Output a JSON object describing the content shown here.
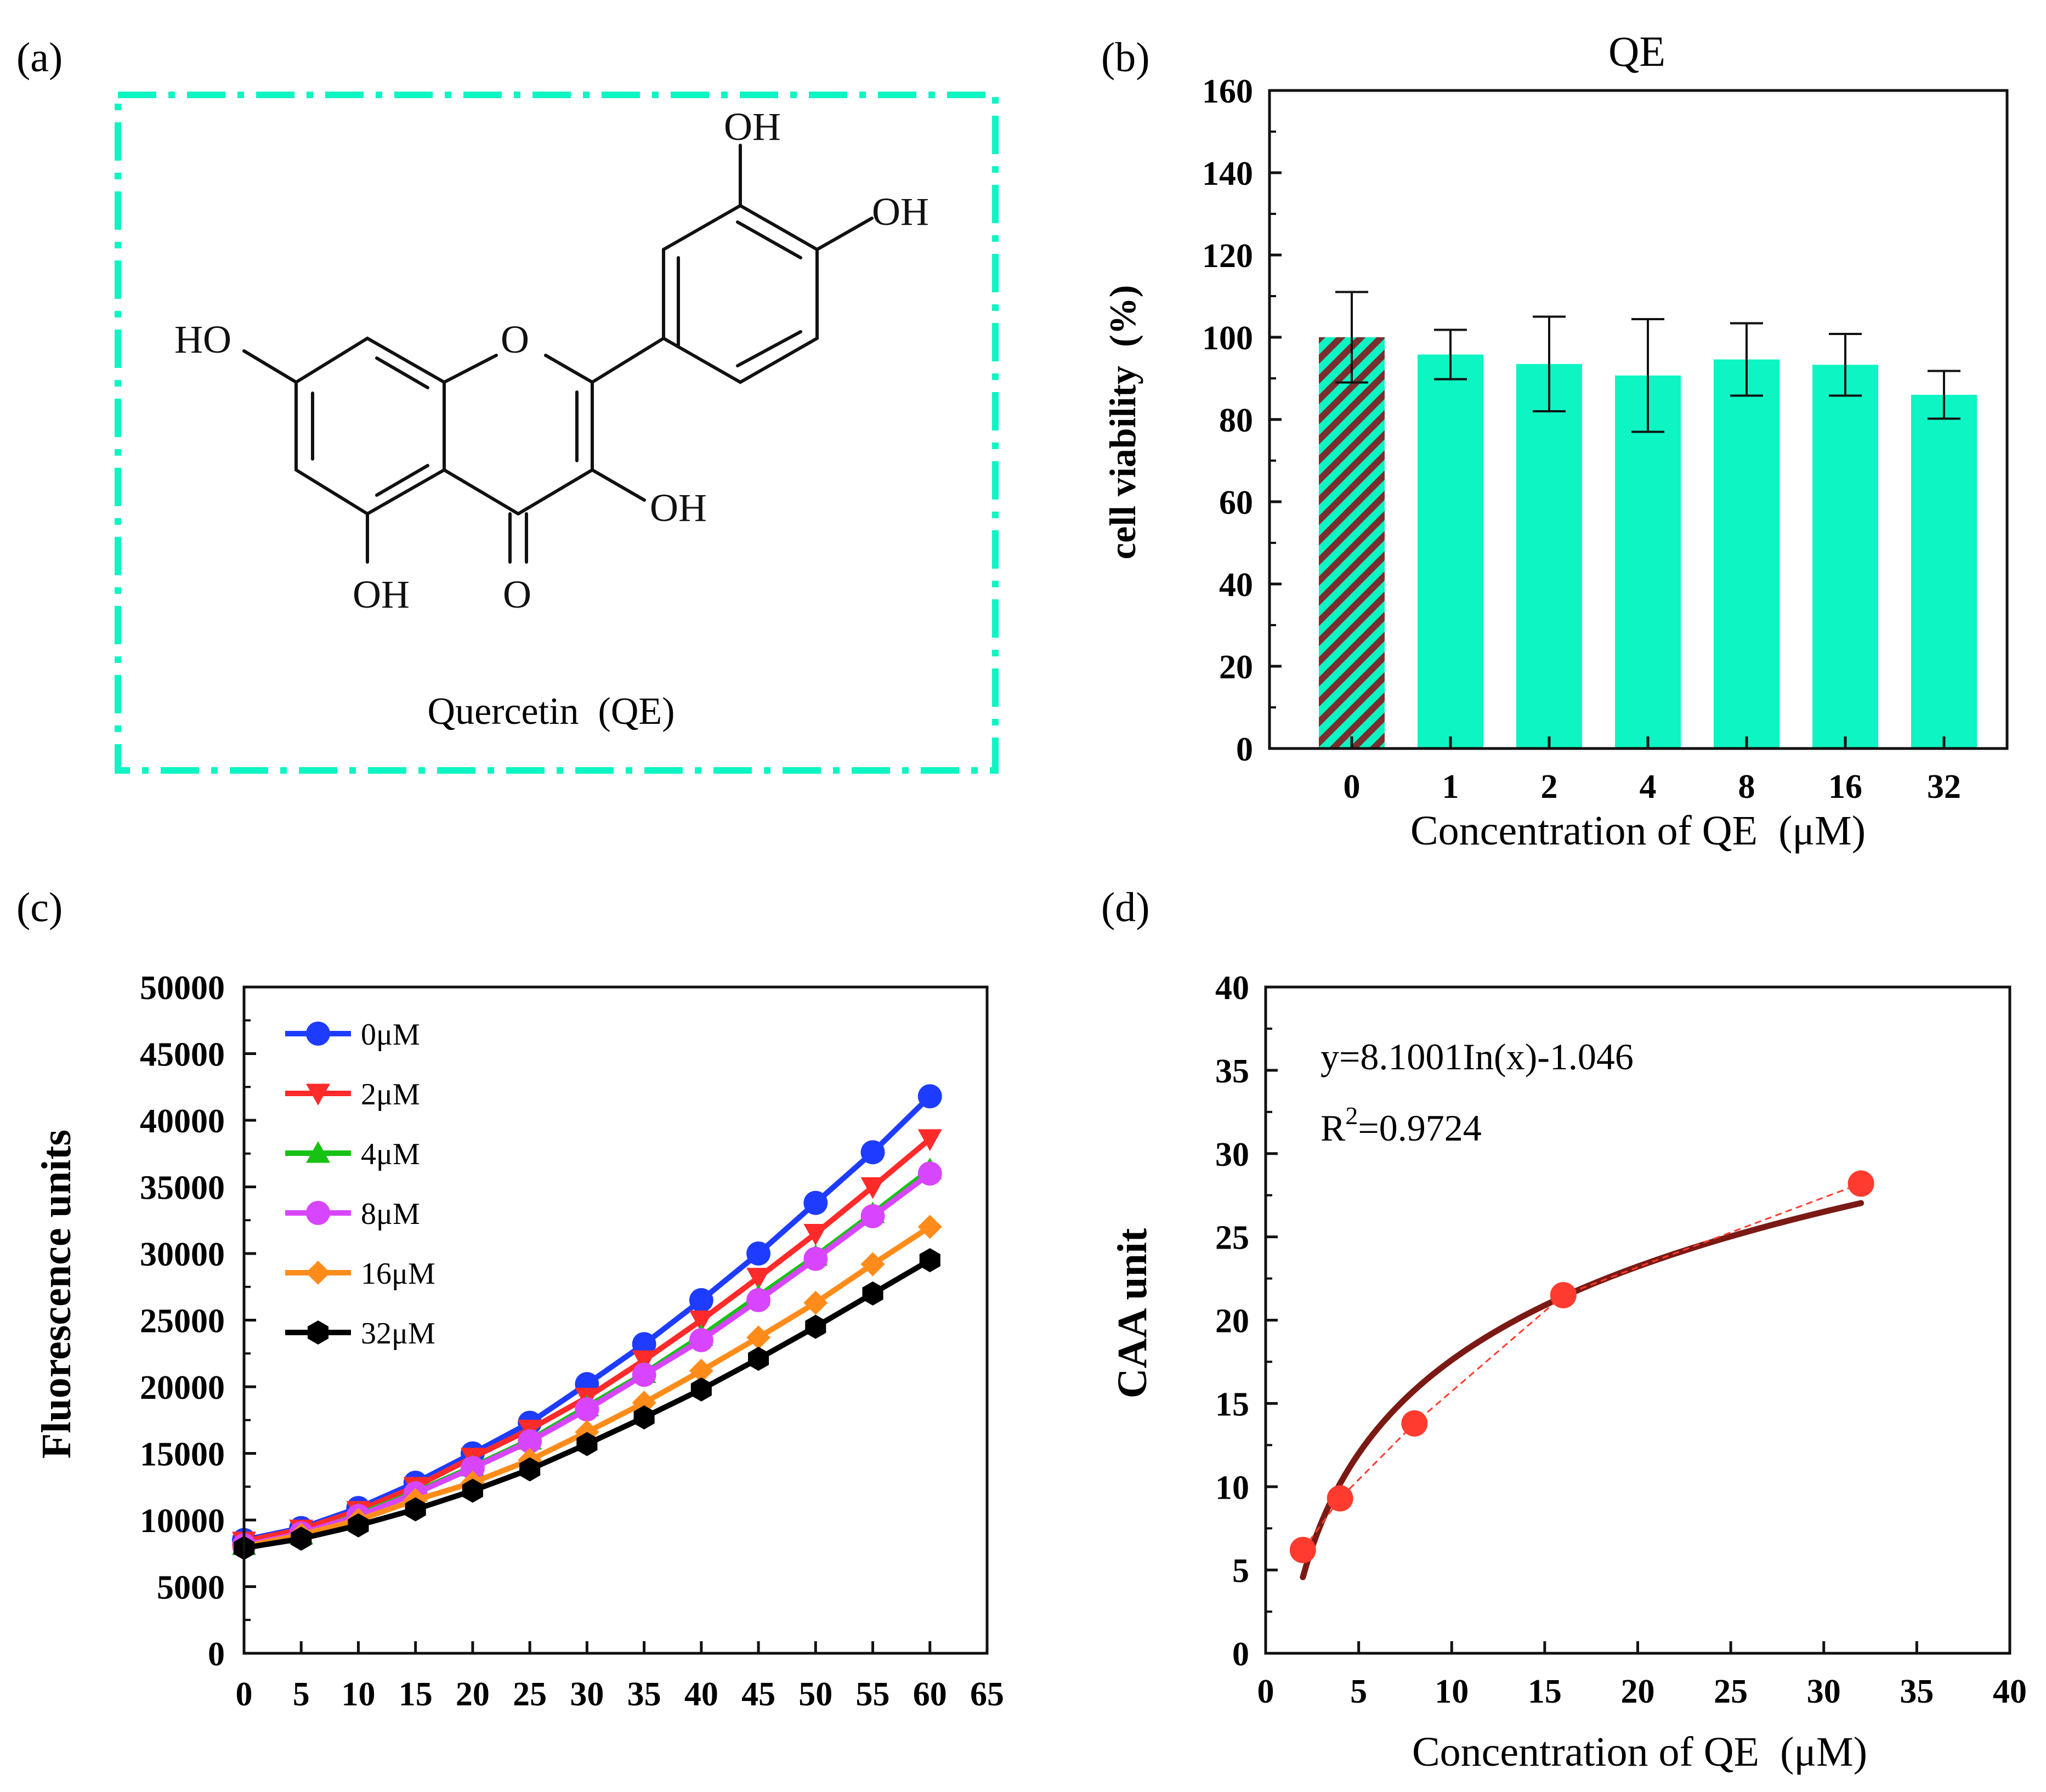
{
  "colors": {
    "teal": "#0DF5C3",
    "hatch": "#7A2E2E",
    "frame": "#111111",
    "fit": "#7B1A14",
    "points": "#FF3B2F"
  },
  "panels": {
    "a": {
      "label": "(a)"
    },
    "b": {
      "label": "(b)"
    },
    "c": {
      "label": "(c)"
    },
    "d": {
      "label": "(d)"
    }
  },
  "structure": {
    "caption": "Quercetin  (QE)",
    "labels": {
      "oh_top": "OH",
      "oh_right": "OH",
      "ho_left": "HO",
      "ring_o": "O",
      "oh_c3": "OH",
      "oh_c5": "OH",
      "carbonyl_o": "O"
    }
  },
  "chart_data": [
    {
      "id": "b",
      "type": "bar",
      "title": "QE",
      "xlabel": "Concentration of QE  (μM)",
      "ylabel": "cell viability  (%)",
      "categories": [
        "0",
        "1",
        "2",
        "4",
        "8",
        "16",
        "32"
      ],
      "values": [
        100,
        95.8,
        93.5,
        90.7,
        94.6,
        93.3,
        86
      ],
      "errors": [
        11,
        6,
        11.5,
        13.7,
        8.8,
        7.5,
        5.8
      ],
      "ylim": [
        0,
        160
      ],
      "yticks": [
        "0",
        "20",
        "40",
        "60",
        "80",
        "100",
        "120",
        "140",
        "160"
      ],
      "hatched_first": true
    },
    {
      "id": "c",
      "type": "line",
      "xlabel": "",
      "ylabel": "Fluorescence units",
      "x": [
        0,
        5,
        10,
        15,
        20,
        25,
        30,
        35,
        40,
        45,
        50,
        55,
        60
      ],
      "xlim": [
        0,
        65
      ],
      "ylim": [
        0,
        50000
      ],
      "xticks": [
        "0",
        "5",
        "10",
        "15",
        "20",
        "25",
        "30",
        "35",
        "40",
        "45",
        "50",
        "55",
        "60",
        "65"
      ],
      "yticks": [
        "0",
        "5000",
        "10000",
        "15000",
        "20000",
        "25000",
        "30000",
        "35000",
        "40000",
        "45000",
        "50000"
      ],
      "legend_position": "top-left",
      "series": [
        {
          "name": "0μM",
          "color": "#1E3CFF",
          "marker": "circle",
          "values": [
            8500,
            9400,
            10900,
            12800,
            15000,
            17300,
            20200,
            23200,
            26500,
            30000,
            33800,
            37600,
            41800
          ]
        },
        {
          "name": "2μM",
          "color": "#FF2A2A",
          "marker": "tri-down",
          "values": [
            8400,
            9300,
            10700,
            12500,
            14700,
            16800,
            19200,
            22000,
            25000,
            28200,
            31500,
            35000,
            38600
          ]
        },
        {
          "name": "4μM",
          "color": "#16C213",
          "marker": "tri-up",
          "values": [
            8100,
            8900,
            10400,
            12100,
            14000,
            16000,
            18500,
            21000,
            23800,
            26800,
            29800,
            33000,
            36300
          ]
        },
        {
          "name": "8μM",
          "color": "#D845FF",
          "marker": "circle",
          "values": [
            8100,
            9000,
            10300,
            12000,
            13900,
            15900,
            18300,
            20900,
            23500,
            26500,
            29600,
            32800,
            36000
          ]
        },
        {
          "name": "16μM",
          "color": "#FF8C1A",
          "marker": "diamond",
          "values": [
            8000,
            8900,
            10000,
            11500,
            12800,
            14500,
            16600,
            18800,
            21200,
            23700,
            26300,
            29200,
            32000
          ]
        },
        {
          "name": "32μM",
          "color": "#000000",
          "marker": "hexagon",
          "values": [
            7900,
            8600,
            9600,
            10800,
            12200,
            13800,
            15700,
            17700,
            19800,
            22100,
            24500,
            27000,
            29500
          ]
        }
      ]
    },
    {
      "id": "d",
      "type": "scatter",
      "xlabel": "Concentration of QE  (μM)",
      "ylabel": "CAA unit",
      "x": [
        2,
        4,
        8,
        16,
        32
      ],
      "y": [
        6.2,
        9.3,
        13.8,
        21.5,
        28.2
      ],
      "xlim": [
        0,
        40
      ],
      "ylim": [
        0,
        40
      ],
      "xticks": [
        "0",
        "5",
        "10",
        "15",
        "20",
        "25",
        "30",
        "35",
        "40"
      ],
      "yticks": [
        "0",
        "5",
        "10",
        "15",
        "20",
        "25",
        "30",
        "35",
        "40"
      ],
      "fit": {
        "a": 8.1001,
        "b": -1.046,
        "x_range": [
          2,
          32
        ]
      },
      "equation": "y=8.1001In(x)-1.046",
      "r2_prefix": "R",
      "r2_sup": "2",
      "r2_value": "=0.9724"
    }
  ]
}
